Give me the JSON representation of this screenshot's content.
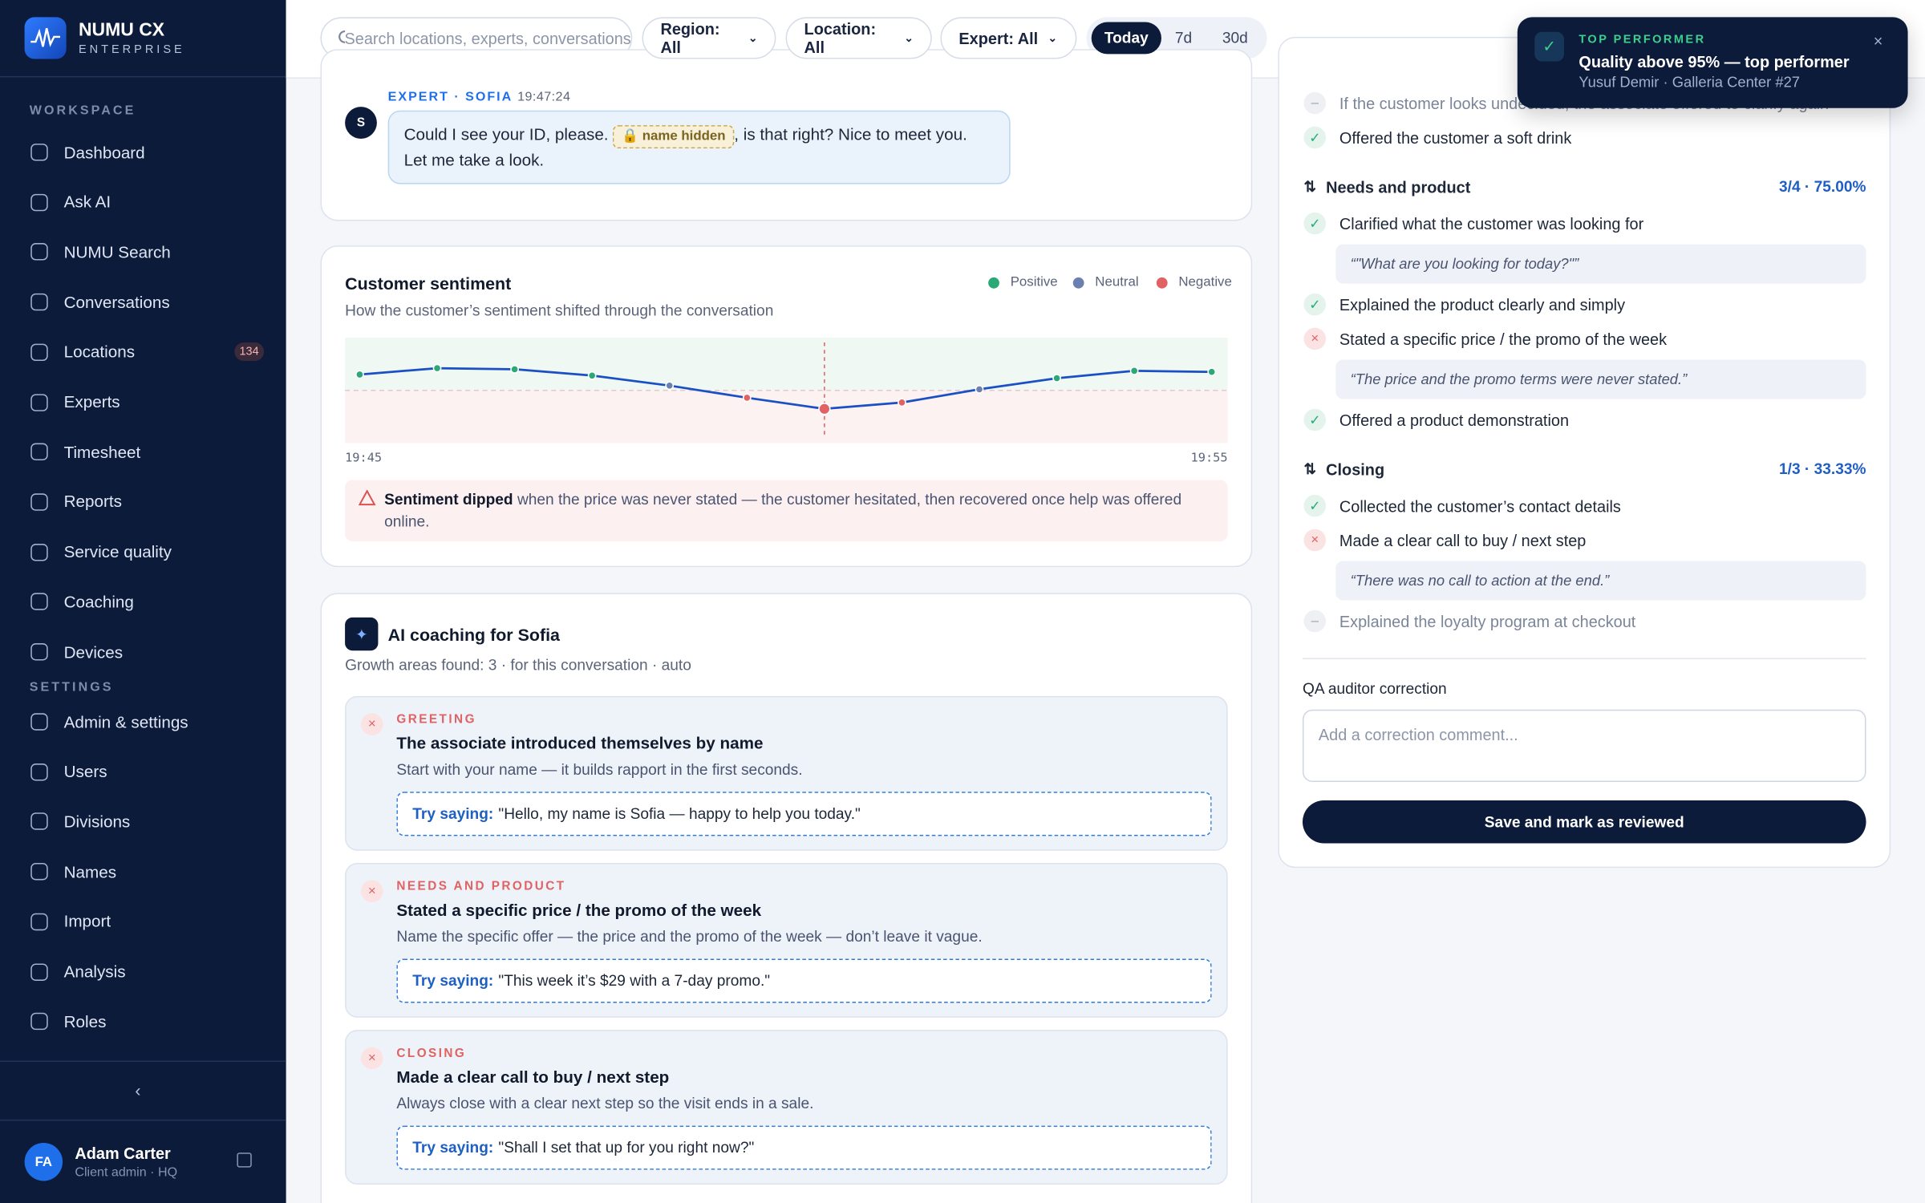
{
  "sidebar": {
    "brand": "NUMU CX",
    "brand_sub": "ENTERPRISE",
    "workspace_label": "WORKSPACE",
    "settings_label": "SETTINGS",
    "workspace": [
      {
        "label": "Dashboard"
      },
      {
        "label": "Ask AI"
      },
      {
        "label": "NUMU Search"
      },
      {
        "label": "Conversations"
      },
      {
        "label": "Locations",
        "badge": "134"
      },
      {
        "label": "Experts"
      },
      {
        "label": "Timesheet"
      },
      {
        "label": "Reports"
      },
      {
        "label": "Service quality"
      },
      {
        "label": "Coaching"
      },
      {
        "label": "Devices"
      }
    ],
    "settings": [
      {
        "label": "Admin & settings"
      },
      {
        "label": "Users"
      },
      {
        "label": "Divisions"
      },
      {
        "label": "Names"
      },
      {
        "label": "Import"
      },
      {
        "label": "Analysis"
      },
      {
        "label": "Roles"
      }
    ],
    "user": {
      "initials": "FA",
      "name": "Adam Carter",
      "role": "Client admin · HQ"
    }
  },
  "topbar": {
    "search_placeholder": "Search locations, experts, conversations",
    "filters": [
      "Region: All",
      "Location: All",
      "Expert: All"
    ],
    "ranges": [
      "Today",
      "7d",
      "30d"
    ],
    "active_range": "Today"
  },
  "toast": {
    "label": "TOP PERFORMER",
    "title": "Quality above 95% — top performer",
    "text": "Yusuf Demir · Galleria Center #27"
  },
  "message": {
    "author": "EXPERT · SOFIA",
    "time": "19:47:24",
    "avatar": "S",
    "text_before": "Could I see your ID, please.",
    "redaction": "name hidden",
    "text_after": ", is that right? Nice to meet you. Let me take a look."
  },
  "sentiment": {
    "chart_data": {
      "type": "line",
      "title": "Customer sentiment",
      "subtitle": "How the customer’s sentiment shifted through the conversation",
      "x_labels": [
        "19:45",
        "19:55"
      ],
      "values": [
        0.3,
        0.42,
        0.4,
        0.28,
        0.09,
        -0.14,
        -0.35,
        -0.23,
        0.02,
        0.23,
        0.37,
        0.35
      ],
      "ylim": [
        -1,
        1
      ],
      "color": "#1b4fc4",
      "legend": [
        {
          "name": "Positive",
          "color": "#2aa876"
        },
        {
          "name": "Neutral",
          "color": "#6b7fb0"
        },
        {
          "name": "Negative",
          "color": "#e06262"
        }
      ]
    },
    "note_lead": "Sentiment dipped",
    "note_text": "when the price was never stated — the customer hesitated, then recovered once help was offered online."
  },
  "coaching": {
    "title": "AI coaching for Sofia",
    "subtitle": "Growth areas found: 3 · for this conversation · auto",
    "try_label": "Try saying:",
    "items": [
      {
        "category": "GREETING",
        "title": "The associate introduced themselves by name",
        "text": "Start with your name — it builds rapport in the first seconds.",
        "suggestion": "\"Hello, my name is Sofia — happy to help you today.\""
      },
      {
        "category": "NEEDS AND PRODUCT",
        "title": "Stated a specific price / the promo of the week",
        "text": "Name the specific offer — the price and the promo of the week — don’t leave it vague.",
        "suggestion": "\"This week it’s $29 with a 7-day promo.\""
      },
      {
        "category": "CLOSING",
        "title": "Made a clear call to buy / next step",
        "text": "Always close with a clear next step so the visit ends in a sale.",
        "suggestion": "\"Shall I set that up for you right now?\""
      }
    ]
  },
  "checklist": [
    {
      "kind": "item",
      "status": "na",
      "label": "If the customer looks undecided, the associate offered to clarify again"
    },
    {
      "kind": "item",
      "status": "pass",
      "label": "Offered the customer a soft drink"
    },
    {
      "kind": "section",
      "label": "Needs and product",
      "score": "3/4 · 75.00%"
    },
    {
      "kind": "item",
      "status": "pass",
      "label": "Clarified what the customer was looking for"
    },
    {
      "kind": "quote",
      "label": "“\"What are you looking for today?\"”"
    },
    {
      "kind": "item",
      "status": "pass",
      "label": "Explained the product clearly and simply"
    },
    {
      "kind": "item",
      "status": "fail",
      "label": "Stated a specific price / the promo of the week"
    },
    {
      "kind": "quote",
      "label": "“The price and the promo terms were never stated.”"
    },
    {
      "kind": "item",
      "status": "pass",
      "label": "Offered a product demonstration"
    },
    {
      "kind": "section",
      "label": "Closing",
      "score": "1/3 · 33.33%"
    },
    {
      "kind": "item",
      "status": "pass",
      "label": "Collected the customer’s contact details"
    },
    {
      "kind": "item",
      "status": "fail",
      "label": "Made a clear call to buy / next step"
    },
    {
      "kind": "quote",
      "label": "“There was no call to action at the end.”"
    },
    {
      "kind": "item",
      "status": "na",
      "label": "Explained the loyalty program at checkout"
    }
  ],
  "qa": {
    "label": "QA auditor correction",
    "placeholder": "Add a correction comment...",
    "button": "Save and mark as reviewed"
  }
}
